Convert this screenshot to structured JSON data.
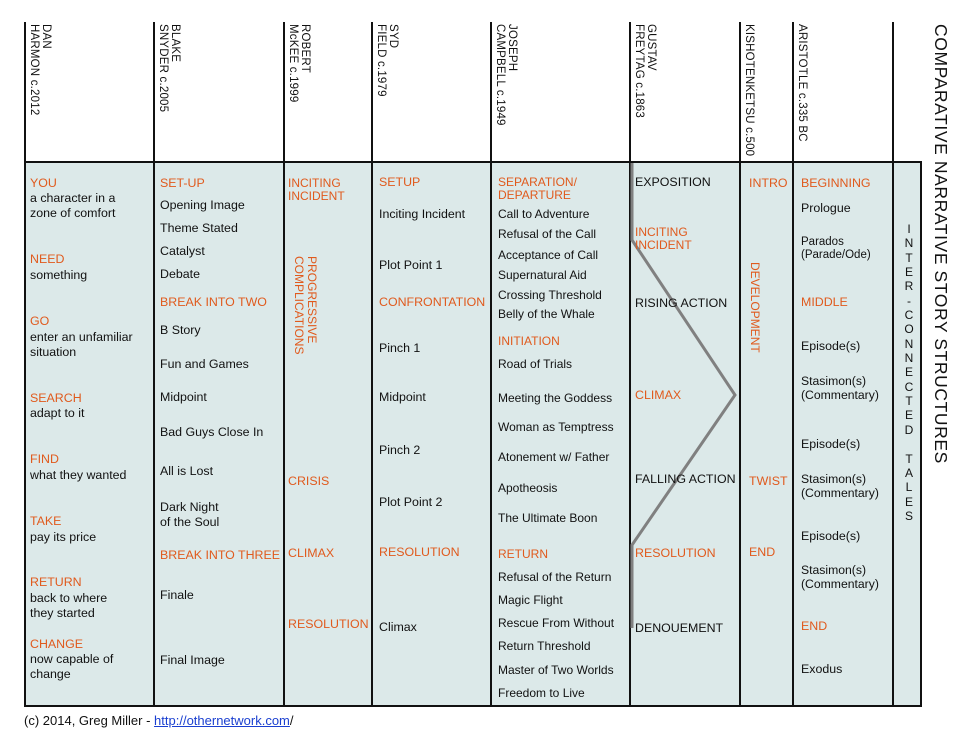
{
  "title": "COMPARATIVE NARRATIVE STORY STRUCTURES",
  "subtitle": "INTER-CONNECTED TALES",
  "colors": {
    "accent": "#e05a1d",
    "band": "#dce9e9",
    "line": "#111111",
    "zigzag": "#808080",
    "link": "#1a3fd0"
  },
  "columns": {
    "harmon": {
      "header": "DAN\nHARMON c.2012",
      "items": [
        {
          "label": "YOU",
          "text": "a character in a\nzone of comfort"
        },
        {
          "label": "NEED",
          "text": "something"
        },
        {
          "label": "GO",
          "text": "enter an unfamiliar\nsituation"
        },
        {
          "label": "SEARCH",
          "text": "adapt to it"
        },
        {
          "label": "FIND",
          "text": "what they wanted"
        },
        {
          "label": "TAKE",
          "text": "pay its price"
        },
        {
          "label": "RETURN",
          "text": "back to where\nthey started"
        },
        {
          "label": "CHANGE",
          "text": "now capable of\nchange"
        }
      ]
    },
    "snyder": {
      "header": "BLAKE\nSNYDER c.2005",
      "setup": "SET-UP",
      "opening": "Opening Image",
      "theme": "Theme Stated",
      "catalyst": "Catalyst",
      "debate": "Debate",
      "break2": "BREAK INTO TWO",
      "bstory": "B Story",
      "fun": "Fun and Games",
      "midpoint": "Midpoint",
      "badguys": "Bad Guys Close In",
      "lost": "All is Lost",
      "darknight": "Dark Night\nof the Soul",
      "break3": "BREAK INTO THREE",
      "finale": "Finale",
      "final_image": "Final Image"
    },
    "mckee": {
      "header": "ROBERT\nMcKEE c.1999",
      "inciting": "INCITING\nINCIDENT",
      "progressive": "PROGRESSIVE\nCOMPLICATIONS",
      "crisis": "CRISIS",
      "climax": "CLIMAX",
      "resolution": "RESOLUTION"
    },
    "field": {
      "header": "SYD\nFIELD c.1979",
      "setup": "SETUP",
      "inciting": "Inciting Incident",
      "pp1": "Plot Point 1",
      "confrontation": "CONFRONTATION",
      "pinch1": "Pinch 1",
      "midpoint": "Midpoint",
      "pinch2": "Pinch 2",
      "pp2": "Plot Point 2",
      "resolution": "RESOLUTION",
      "climax": "Climax"
    },
    "campbell": {
      "header": "JOSEPH\nCAMPBELL c.1949",
      "separation": "SEPARATION/\nDEPARTURE",
      "call": "Call to Adventure",
      "refusal": "Refusal of the Call",
      "acceptance": "Acceptance of Call",
      "aid": "Supernatural Aid",
      "threshold": "Crossing Threshold",
      "belly": "Belly of the Whale",
      "initiation": "INITIATION",
      "trials": "Road of Trials",
      "goddess": "Meeting the Goddess",
      "temptress": "Woman as Temptress",
      "atonement": "Atonement w/ Father",
      "apotheosis": "Apotheosis",
      "boon": "The Ultimate Boon",
      "return": "RETURN",
      "refusal_return": "Refusal of the Return",
      "magic": "Magic Flight",
      "rescue": "Rescue From Without",
      "return_threshold": "Return Threshold",
      "master": "Master of Two Worlds",
      "freedom": "Freedom to Live"
    },
    "freytag": {
      "header": "GUSTAV\nFREYTAG c.1863",
      "exposition": "EXPOSITION",
      "inciting": "INCITING\nINCIDENT",
      "rising": "RISING ACTION",
      "climax": "CLIMAX",
      "falling": "FALLING ACTION",
      "resolution": "RESOLUTION",
      "denouement": "DENOUEMENT"
    },
    "kishotenketsu": {
      "header": "KISHOTENKETSU c.500",
      "intro": "INTRO",
      "development": "DEVELOPMENT",
      "twist": "TWIST",
      "end": "END"
    },
    "aristotle": {
      "header": "ARISTOTLE c.335 BC",
      "beginning": "BEGINNING",
      "prologue": "Prologue",
      "parados": "Parados\n(Parade/Ode)",
      "middle": "MIDDLE",
      "episode1": "Episode(s)",
      "stasimon1": "Stasimon(s)\n(Commentary)",
      "episode2": "Episode(s)",
      "stasimon2": "Stasimon(s)\n(Commentary)",
      "episode3": "Episode(s)",
      "stasimon3": "Stasimon(s)\n(Commentary)",
      "end": "END",
      "exodus": "Exodus"
    }
  },
  "footer": {
    "prefix": "(c) 2014, Greg Miller - ",
    "link": "http://othernetwork.com",
    "suffix": "/"
  }
}
